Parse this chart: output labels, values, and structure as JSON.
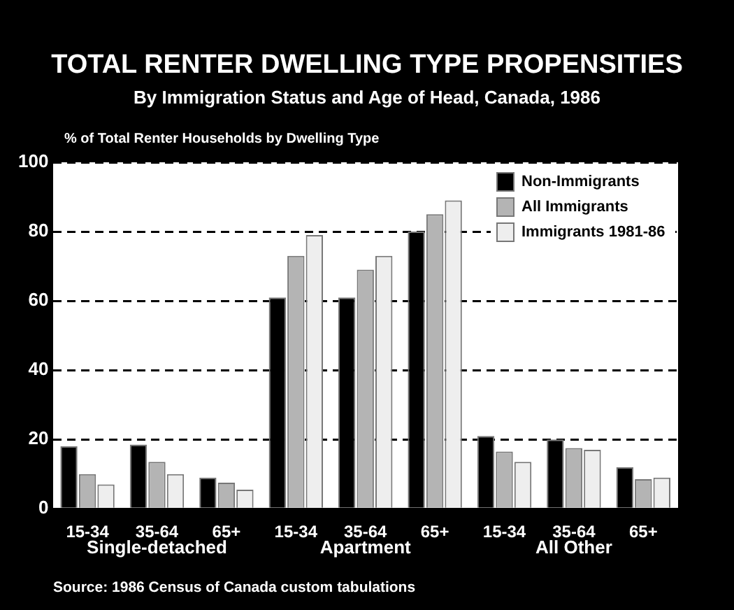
{
  "chart_data": {
    "type": "bar",
    "title": "TOTAL RENTER DWELLING TYPE PROPENSITIES",
    "subtitle": "By Immigration Status and Age of Head, Canada, 1986",
    "ylabel": "% of Total Renter Households by Dwelling Type",
    "categories": [
      "15-34",
      "35-64",
      "65+",
      "15-34",
      "35-64",
      "65+",
      "15-34",
      "35-64",
      "65+"
    ],
    "series": [
      {
        "name": "Non-Immigrants",
        "color": "#000000",
        "values": [
          18,
          18.5,
          9,
          61,
          61,
          80,
          21,
          20,
          12
        ]
      },
      {
        "name": "All Immigrants",
        "color": "#b4b4b4",
        "values": [
          10,
          13.5,
          7.5,
          73,
          69,
          85,
          16.5,
          17.5,
          8.5
        ]
      },
      {
        "name": "Immigrants 1981-86",
        "color": "#eeeeee",
        "values": [
          7,
          10,
          5.5,
          79,
          73,
          89,
          13.5,
          17,
          9
        ]
      }
    ],
    "ylim": [
      0,
      100
    ],
    "yticks": [
      0,
      20,
      40,
      60,
      80,
      100
    ],
    "grid": "y",
    "legend": "top right",
    "annotations": [
      "Single-detached",
      "Apartment",
      "All Other",
      "Source: 1986 Census of Canada custom tabulations"
    ]
  }
}
